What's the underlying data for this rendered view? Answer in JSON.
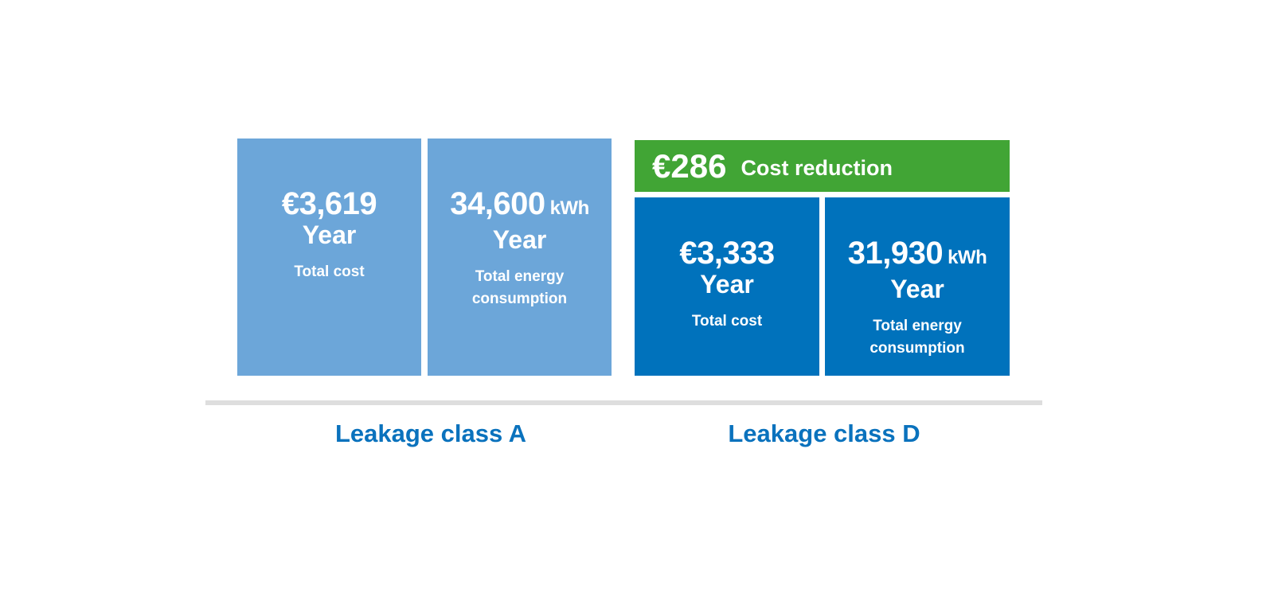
{
  "colors": {
    "class_a": "#6ca6d9",
    "class_d": "#0072bc",
    "reduction": "#41a535",
    "label": "#0a72bd",
    "divider": "#dedede"
  },
  "class_a": {
    "label": "Leakage class A",
    "cost": {
      "value": "€3,619",
      "period": "Year",
      "caption": "Total cost"
    },
    "energy": {
      "value": "34,600",
      "unit": "kWh",
      "period": "Year",
      "caption_line1": "Total energy",
      "caption_line2": "consumption"
    }
  },
  "class_d": {
    "label": "Leakage class D",
    "reduction": {
      "value": "€286",
      "text": "Cost reduction"
    },
    "cost": {
      "value": "€3,333",
      "period": "Year",
      "caption": "Total cost"
    },
    "energy": {
      "value": "31,930",
      "unit": "kWh",
      "period": "Year",
      "caption_line1": "Total energy",
      "caption_line2": "consumption"
    }
  }
}
